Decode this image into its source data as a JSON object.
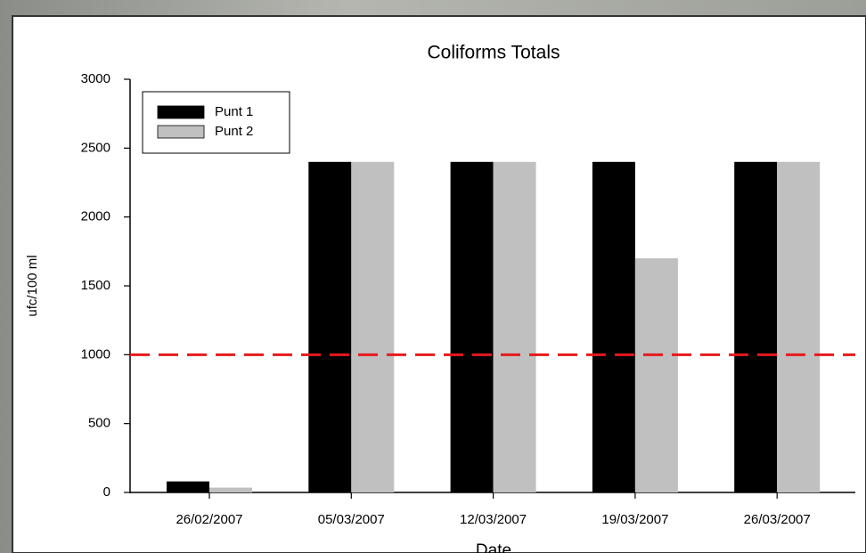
{
  "chart_data": {
    "type": "bar",
    "title": "Coliforms Totals",
    "x_label": "Date",
    "y_label": "ufc/100 ml",
    "categories": [
      "26/02/2007",
      "05/03/2007",
      "12/03/2007",
      "19/03/2007",
      "26/03/2007"
    ],
    "series": [
      {
        "name": "Punt 1",
        "color": "#000000",
        "values": [
          80,
          2400,
          2400,
          2400,
          2400
        ]
      },
      {
        "name": "Punt 2",
        "color": "#c0c0c0",
        "values": [
          35,
          2400,
          2400,
          1700,
          2400
        ]
      }
    ],
    "reference_line": {
      "value": 1000,
      "color": "#e8191b"
    },
    "ylim": [
      0,
      3000
    ],
    "yticks": [
      0,
      500,
      1000,
      1500,
      2000,
      2500,
      3000
    ],
    "grid": false,
    "legend": "upper left"
  }
}
